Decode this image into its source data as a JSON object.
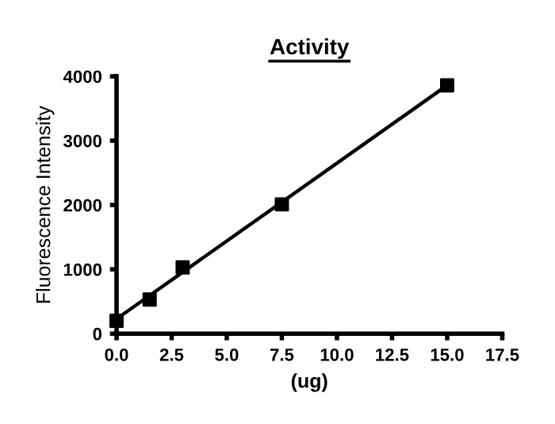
{
  "chart_data": {
    "type": "scatter",
    "title": "Activity",
    "xlabel": "(ug)",
    "ylabel": "Fluorescence Intensity",
    "series": [
      {
        "color": "#000000",
        "marker": "square",
        "x": [
          0,
          1.5,
          3,
          7.5,
          15
        ],
        "values": [
          200,
          530,
          1030,
          2010,
          3860
        ]
      },
      {
        "type": "line",
        "color": "#000000",
        "marker": "none",
        "x": [
          0,
          15
        ],
        "values": [
          230,
          3860
        ]
      }
    ],
    "xlim": [
      0,
      17.5
    ],
    "xticks": [
      {
        "value": 0,
        "label": "0.0"
      },
      {
        "value": 2.5,
        "label": "2.5"
      },
      {
        "value": 5,
        "label": "5.0"
      },
      {
        "value": 7.5,
        "label": "7.5"
      },
      {
        "value": 10,
        "label": "10.0"
      },
      {
        "value": 12.5,
        "label": "12.5"
      },
      {
        "value": 15,
        "label": "15.0"
      },
      {
        "value": 17.5,
        "label": "17.5"
      }
    ],
    "ylim": [
      0,
      4000
    ],
    "yticks": [
      0,
      1000,
      2000,
      3000,
      4000
    ],
    "grid": false,
    "legend": false
  }
}
